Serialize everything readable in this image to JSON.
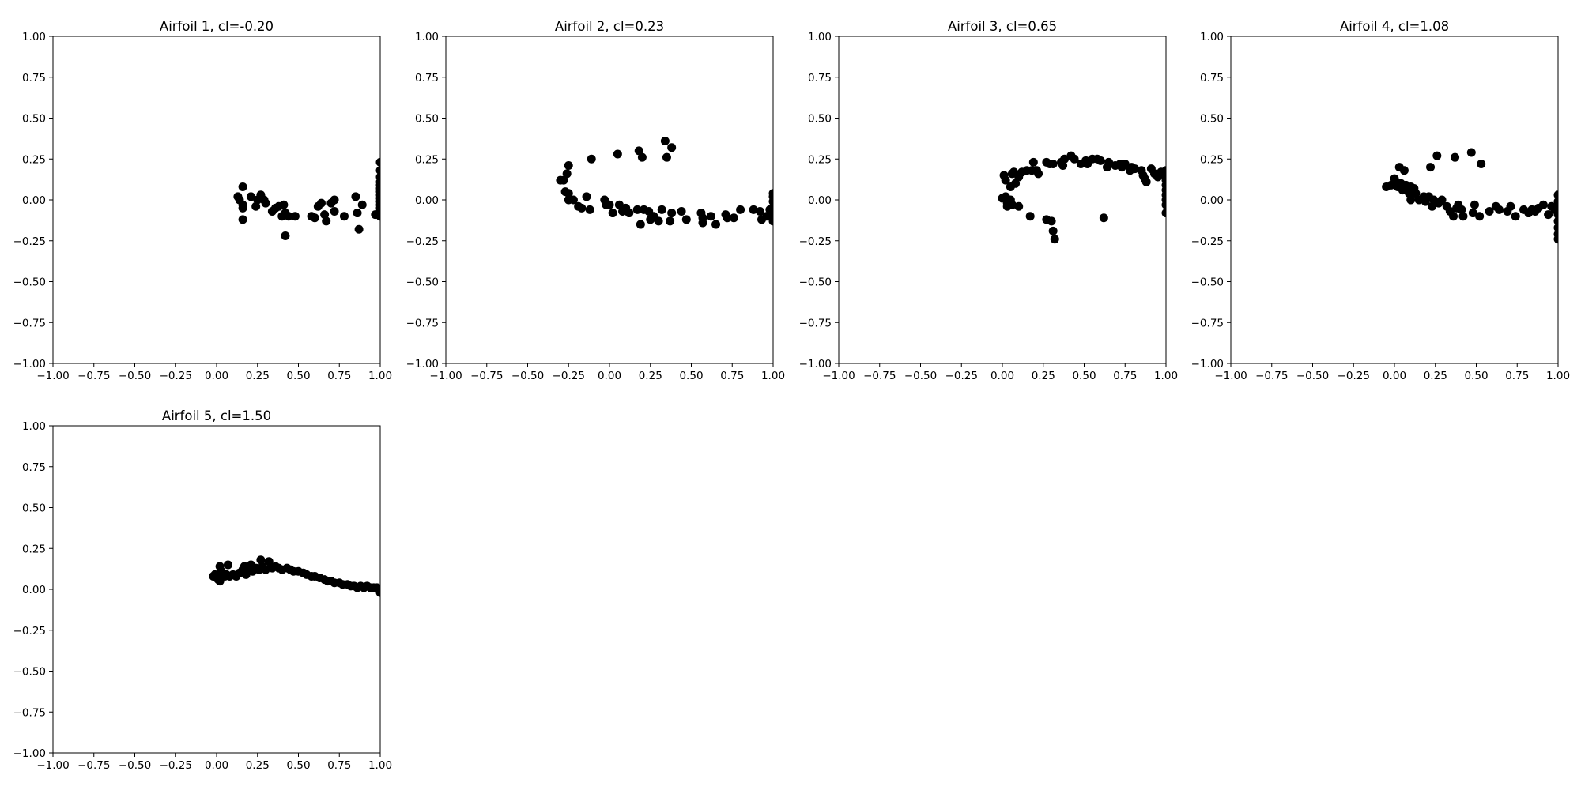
{
  "figure": {
    "background": "#ffffff",
    "marker_color": "#000000"
  },
  "chart_data": [
    {
      "type": "scatter",
      "title": "Airfoil 1, cl=-0.20",
      "xlim": [
        -1,
        1
      ],
      "ylim": [
        -1,
        1
      ],
      "ticks": [
        -1.0,
        -0.75,
        -0.5,
        -0.25,
        0.0,
        0.25,
        0.5,
        0.75,
        1.0
      ],
      "tick_labels": [
        "−1.00",
        "−0.75",
        "−0.50",
        "−0.25",
        "0.00",
        "0.25",
        "0.50",
        "0.75",
        "1.00"
      ],
      "grid": false,
      "points": [
        [
          0.13,
          0.02
        ],
        [
          0.14,
          0.0
        ],
        [
          0.16,
          0.08
        ],
        [
          0.16,
          -0.03
        ],
        [
          0.16,
          -0.05
        ],
        [
          0.16,
          -0.12
        ],
        [
          0.21,
          0.02
        ],
        [
          0.24,
          -0.04
        ],
        [
          0.25,
          0.0
        ],
        [
          0.27,
          0.03
        ],
        [
          0.29,
          0.0
        ],
        [
          0.3,
          -0.02
        ],
        [
          0.34,
          -0.07
        ],
        [
          0.36,
          -0.05
        ],
        [
          0.38,
          -0.04
        ],
        [
          0.4,
          -0.1
        ],
        [
          0.41,
          -0.03
        ],
        [
          0.42,
          -0.08
        ],
        [
          0.42,
          -0.22
        ],
        [
          0.44,
          -0.1
        ],
        [
          0.48,
          -0.1
        ],
        [
          0.58,
          -0.1
        ],
        [
          0.6,
          -0.11
        ],
        [
          0.62,
          -0.04
        ],
        [
          0.64,
          -0.02
        ],
        [
          0.66,
          -0.09
        ],
        [
          0.67,
          -0.13
        ],
        [
          0.7,
          -0.02
        ],
        [
          0.72,
          0.0
        ],
        [
          0.72,
          -0.07
        ],
        [
          0.78,
          -0.1
        ],
        [
          0.85,
          0.02
        ],
        [
          0.86,
          -0.08
        ],
        [
          0.87,
          -0.18
        ],
        [
          0.89,
          -0.03
        ],
        [
          0.97,
          -0.09
        ],
        [
          1.0,
          -0.1
        ],
        [
          1.0,
          -0.07
        ],
        [
          1.0,
          -0.05
        ],
        [
          1.0,
          -0.03
        ],
        [
          1.0,
          -0.01
        ],
        [
          1.0,
          0.01
        ],
        [
          1.0,
          0.03
        ],
        [
          1.0,
          0.05
        ],
        [
          1.0,
          0.07
        ],
        [
          1.0,
          0.09
        ],
        [
          1.0,
          0.11
        ],
        [
          1.0,
          0.14
        ],
        [
          1.0,
          0.18
        ],
        [
          1.0,
          0.23
        ]
      ]
    },
    {
      "type": "scatter",
      "title": "Airfoil 2, cl=0.23",
      "xlim": [
        -1,
        1
      ],
      "ylim": [
        -1,
        1
      ],
      "ticks": [
        -1.0,
        -0.75,
        -0.5,
        -0.25,
        0.0,
        0.25,
        0.5,
        0.75,
        1.0
      ],
      "tick_labels": [
        "−1.00",
        "−0.75",
        "−0.50",
        "−0.25",
        "0.00",
        "0.25",
        "0.50",
        "0.75",
        "1.00"
      ],
      "grid": false,
      "points": [
        [
          -0.3,
          0.12
        ],
        [
          -0.28,
          0.12
        ],
        [
          -0.27,
          0.05
        ],
        [
          -0.26,
          0.16
        ],
        [
          -0.25,
          0.21
        ],
        [
          -0.25,
          0.04
        ],
        [
          -0.25,
          0.0
        ],
        [
          -0.22,
          0.0
        ],
        [
          -0.19,
          -0.04
        ],
        [
          -0.17,
          -0.05
        ],
        [
          -0.14,
          0.02
        ],
        [
          -0.12,
          -0.06
        ],
        [
          -0.11,
          0.25
        ],
        [
          -0.03,
          0.0
        ],
        [
          -0.02,
          -0.03
        ],
        [
          -0.02,
          -0.02
        ],
        [
          0.0,
          -0.03
        ],
        [
          0.02,
          -0.08
        ],
        [
          0.05,
          0.28
        ],
        [
          0.06,
          -0.03
        ],
        [
          0.08,
          -0.07
        ],
        [
          0.1,
          -0.05
        ],
        [
          0.12,
          -0.08
        ],
        [
          0.17,
          -0.06
        ],
        [
          0.18,
          0.3
        ],
        [
          0.19,
          -0.15
        ],
        [
          0.2,
          0.26
        ],
        [
          0.21,
          -0.06
        ],
        [
          0.24,
          -0.07
        ],
        [
          0.25,
          -0.12
        ],
        [
          0.27,
          -0.1
        ],
        [
          0.3,
          -0.13
        ],
        [
          0.32,
          -0.06
        ],
        [
          0.34,
          0.36
        ],
        [
          0.35,
          0.26
        ],
        [
          0.37,
          -0.13
        ],
        [
          0.38,
          -0.08
        ],
        [
          0.38,
          0.32
        ],
        [
          0.44,
          -0.07
        ],
        [
          0.47,
          -0.12
        ],
        [
          0.56,
          -0.08
        ],
        [
          0.57,
          -0.14
        ],
        [
          0.57,
          -0.11
        ],
        [
          0.62,
          -0.1
        ],
        [
          0.65,
          -0.15
        ],
        [
          0.71,
          -0.09
        ],
        [
          0.72,
          -0.11
        ],
        [
          0.76,
          -0.11
        ],
        [
          0.8,
          -0.06
        ],
        [
          0.88,
          -0.06
        ],
        [
          0.92,
          -0.07
        ],
        [
          0.93,
          -0.12
        ],
        [
          0.96,
          -0.1
        ],
        [
          0.98,
          -0.06
        ],
        [
          1.0,
          -0.13
        ],
        [
          1.0,
          -0.09
        ],
        [
          1.0,
          -0.05
        ],
        [
          1.0,
          -0.01
        ],
        [
          1.0,
          0.02
        ],
        [
          1.0,
          0.04
        ]
      ]
    },
    {
      "type": "scatter",
      "title": "Airfoil 3, cl=0.65",
      "xlim": [
        -1,
        1
      ],
      "ylim": [
        -1,
        1
      ],
      "ticks": [
        -1.0,
        -0.75,
        -0.5,
        -0.25,
        0.0,
        0.25,
        0.5,
        0.75,
        1.0
      ],
      "tick_labels": [
        "−1.00",
        "−0.75",
        "−0.50",
        "−0.25",
        "0.00",
        "0.25",
        "0.50",
        "0.75",
        "1.00"
      ],
      "grid": false,
      "points": [
        [
          0.0,
          0.01
        ],
        [
          0.01,
          0.15
        ],
        [
          0.02,
          0.12
        ],
        [
          0.02,
          0.02
        ],
        [
          0.03,
          -0.04
        ],
        [
          0.03,
          -0.02
        ],
        [
          0.05,
          0.0
        ],
        [
          0.05,
          0.08
        ],
        [
          0.06,
          0.16
        ],
        [
          0.06,
          -0.03
        ],
        [
          0.07,
          0.17
        ],
        [
          0.08,
          0.1
        ],
        [
          0.1,
          0.14
        ],
        [
          0.1,
          -0.04
        ],
        [
          0.12,
          0.17
        ],
        [
          0.15,
          0.18
        ],
        [
          0.17,
          -0.1
        ],
        [
          0.18,
          0.18
        ],
        [
          0.19,
          0.23
        ],
        [
          0.21,
          0.18
        ],
        [
          0.22,
          0.16
        ],
        [
          0.27,
          0.23
        ],
        [
          0.27,
          -0.12
        ],
        [
          0.29,
          0.22
        ],
        [
          0.3,
          -0.13
        ],
        [
          0.31,
          0.22
        ],
        [
          0.31,
          -0.19
        ],
        [
          0.32,
          -0.24
        ],
        [
          0.36,
          0.23
        ],
        [
          0.37,
          0.21
        ],
        [
          0.38,
          0.25
        ],
        [
          0.42,
          0.27
        ],
        [
          0.44,
          0.25
        ],
        [
          0.48,
          0.22
        ],
        [
          0.51,
          0.24
        ],
        [
          0.52,
          0.22
        ],
        [
          0.55,
          0.25
        ],
        [
          0.58,
          0.25
        ],
        [
          0.6,
          0.24
        ],
        [
          0.62,
          -0.11
        ],
        [
          0.64,
          0.2
        ],
        [
          0.65,
          0.23
        ],
        [
          0.69,
          0.21
        ],
        [
          0.72,
          0.22
        ],
        [
          0.73,
          0.2
        ],
        [
          0.75,
          0.22
        ],
        [
          0.78,
          0.18
        ],
        [
          0.79,
          0.2
        ],
        [
          0.81,
          0.19
        ],
        [
          0.85,
          0.18
        ],
        [
          0.86,
          0.15
        ],
        [
          0.87,
          0.13
        ],
        [
          0.88,
          0.11
        ],
        [
          0.91,
          0.19
        ],
        [
          0.93,
          0.16
        ],
        [
          0.95,
          0.14
        ],
        [
          0.97,
          0.17
        ],
        [
          1.0,
          0.18
        ],
        [
          1.0,
          0.16
        ],
        [
          1.0,
          0.14
        ],
        [
          1.0,
          0.12
        ],
        [
          1.0,
          0.09
        ],
        [
          1.0,
          0.06
        ],
        [
          1.0,
          0.03
        ],
        [
          1.0,
          0.0
        ],
        [
          1.0,
          -0.03
        ],
        [
          1.0,
          -0.08
        ]
      ]
    },
    {
      "type": "scatter",
      "title": "Airfoil 4, cl=1.08",
      "xlim": [
        -1,
        1
      ],
      "ylim": [
        -1,
        1
      ],
      "ticks": [
        -1.0,
        -0.75,
        -0.5,
        -0.25,
        0.0,
        0.25,
        0.5,
        0.75,
        1.0
      ],
      "tick_labels": [
        "−1.00",
        "−0.75",
        "−0.50",
        "−0.25",
        "0.00",
        "0.25",
        "0.50",
        "0.75",
        "1.00"
      ],
      "grid": false,
      "points": [
        [
          -0.05,
          0.08
        ],
        [
          -0.02,
          0.09
        ],
        [
          0.0,
          0.1
        ],
        [
          0.0,
          0.13
        ],
        [
          0.01,
          0.11
        ],
        [
          0.02,
          0.08
        ],
        [
          0.03,
          0.2
        ],
        [
          0.04,
          0.1
        ],
        [
          0.05,
          0.06
        ],
        [
          0.06,
          0.18
        ],
        [
          0.07,
          0.09
        ],
        [
          0.08,
          0.07
        ],
        [
          0.09,
          0.04
        ],
        [
          0.1,
          0.0
        ],
        [
          0.1,
          0.08
        ],
        [
          0.12,
          0.07
        ],
        [
          0.13,
          0.04
        ],
        [
          0.15,
          0.0
        ],
        [
          0.18,
          0.02
        ],
        [
          0.19,
          -0.01
        ],
        [
          0.21,
          0.02
        ],
        [
          0.22,
          0.2
        ],
        [
          0.23,
          -0.04
        ],
        [
          0.24,
          0.0
        ],
        [
          0.26,
          0.27
        ],
        [
          0.27,
          -0.02
        ],
        [
          0.29,
          0.0
        ],
        [
          0.32,
          -0.04
        ],
        [
          0.34,
          -0.07
        ],
        [
          0.36,
          -0.1
        ],
        [
          0.37,
          0.26
        ],
        [
          0.38,
          -0.05
        ],
        [
          0.39,
          -0.03
        ],
        [
          0.41,
          -0.06
        ],
        [
          0.42,
          -0.1
        ],
        [
          0.47,
          0.29
        ],
        [
          0.48,
          -0.08
        ],
        [
          0.49,
          -0.03
        ],
        [
          0.52,
          -0.1
        ],
        [
          0.53,
          0.22
        ],
        [
          0.58,
          -0.07
        ],
        [
          0.62,
          -0.04
        ],
        [
          0.64,
          -0.06
        ],
        [
          0.69,
          -0.07
        ],
        [
          0.71,
          -0.04
        ],
        [
          0.74,
          -0.1
        ],
        [
          0.79,
          -0.06
        ],
        [
          0.82,
          -0.08
        ],
        [
          0.84,
          -0.06
        ],
        [
          0.86,
          -0.07
        ],
        [
          0.88,
          -0.05
        ],
        [
          0.91,
          -0.03
        ],
        [
          0.94,
          -0.09
        ],
        [
          0.96,
          -0.04
        ],
        [
          0.98,
          -0.06
        ],
        [
          1.0,
          -0.24
        ],
        [
          1.0,
          -0.21
        ],
        [
          1.0,
          -0.17
        ],
        [
          1.0,
          -0.13
        ],
        [
          1.0,
          -0.09
        ],
        [
          1.0,
          -0.05
        ],
        [
          1.0,
          -0.01
        ],
        [
          1.0,
          0.03
        ]
      ]
    },
    {
      "type": "scatter",
      "title": "Airfoil 5, cl=1.50",
      "xlim": [
        -1,
        1
      ],
      "ylim": [
        -1,
        1
      ],
      "ticks": [
        -1.0,
        -0.75,
        -0.5,
        -0.25,
        0.0,
        0.25,
        0.5,
        0.75,
        1.0
      ],
      "tick_labels": [
        "−1.00",
        "−0.75",
        "−0.50",
        "−0.25",
        "0.00",
        "0.25",
        "0.50",
        "0.75",
        "1.00"
      ],
      "grid": false,
      "points": [
        [
          -0.02,
          0.08
        ],
        [
          -0.01,
          0.09
        ],
        [
          0.0,
          0.07
        ],
        [
          0.01,
          0.06
        ],
        [
          0.02,
          0.14
        ],
        [
          0.02,
          0.05
        ],
        [
          0.03,
          0.11
        ],
        [
          0.04,
          0.09
        ],
        [
          0.05,
          0.08
        ],
        [
          0.06,
          0.09
        ],
        [
          0.07,
          0.15
        ],
        [
          0.08,
          0.08
        ],
        [
          0.1,
          0.09
        ],
        [
          0.12,
          0.08
        ],
        [
          0.14,
          0.1
        ],
        [
          0.16,
          0.12
        ],
        [
          0.17,
          0.14
        ],
        [
          0.18,
          0.09
        ],
        [
          0.2,
          0.12
        ],
        [
          0.21,
          0.15
        ],
        [
          0.22,
          0.11
        ],
        [
          0.24,
          0.13
        ],
        [
          0.26,
          0.12
        ],
        [
          0.27,
          0.18
        ],
        [
          0.28,
          0.14
        ],
        [
          0.3,
          0.12
        ],
        [
          0.32,
          0.17
        ],
        [
          0.34,
          0.13
        ],
        [
          0.36,
          0.14
        ],
        [
          0.38,
          0.13
        ],
        [
          0.4,
          0.12
        ],
        [
          0.43,
          0.13
        ],
        [
          0.45,
          0.12
        ],
        [
          0.47,
          0.11
        ],
        [
          0.5,
          0.11
        ],
        [
          0.53,
          0.1
        ],
        [
          0.55,
          0.09
        ],
        [
          0.58,
          0.08
        ],
        [
          0.6,
          0.08
        ],
        [
          0.63,
          0.07
        ],
        [
          0.66,
          0.06
        ],
        [
          0.68,
          0.05
        ],
        [
          0.7,
          0.05
        ],
        [
          0.72,
          0.04
        ],
        [
          0.75,
          0.04
        ],
        [
          0.77,
          0.03
        ],
        [
          0.8,
          0.03
        ],
        [
          0.82,
          0.02
        ],
        [
          0.84,
          0.02
        ],
        [
          0.86,
          0.01
        ],
        [
          0.88,
          0.02
        ],
        [
          0.9,
          0.01
        ],
        [
          0.92,
          0.02
        ],
        [
          0.94,
          0.01
        ],
        [
          0.96,
          0.01
        ],
        [
          0.98,
          0.01
        ],
        [
          1.0,
          0.0
        ],
        [
          1.0,
          -0.02
        ]
      ]
    }
  ]
}
